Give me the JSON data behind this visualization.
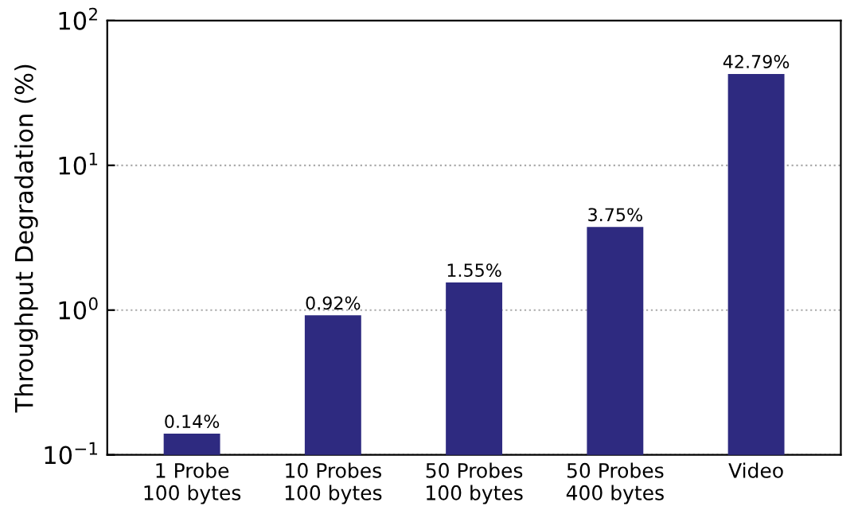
{
  "chart_data": {
    "type": "bar",
    "ylabel": "Throughput Degradation (%)",
    "categories": [
      "1 Probe\n100 bytes",
      "10 Probes\n100 bytes",
      "50 Probes\n100 bytes",
      "50 Probes\n400 bytes",
      "Video"
    ],
    "values": [
      0.14,
      0.92,
      1.55,
      3.75,
      42.79
    ],
    "value_labels": [
      "0.14%",
      "0.92%",
      "1.55%",
      "3.75%",
      "42.79%"
    ],
    "color": "#2e2a80",
    "log": true,
    "ylim": [
      0.1,
      100
    ],
    "yticks": [
      {
        "value": 0.1,
        "label": "10$^{−1}$"
      },
      {
        "value": 1,
        "label": "10$^{0}$"
      },
      {
        "value": 10,
        "label": "10$^{1}$"
      },
      {
        "value": 100,
        "label": "10$^{2}$"
      }
    ],
    "grid": "y"
  }
}
